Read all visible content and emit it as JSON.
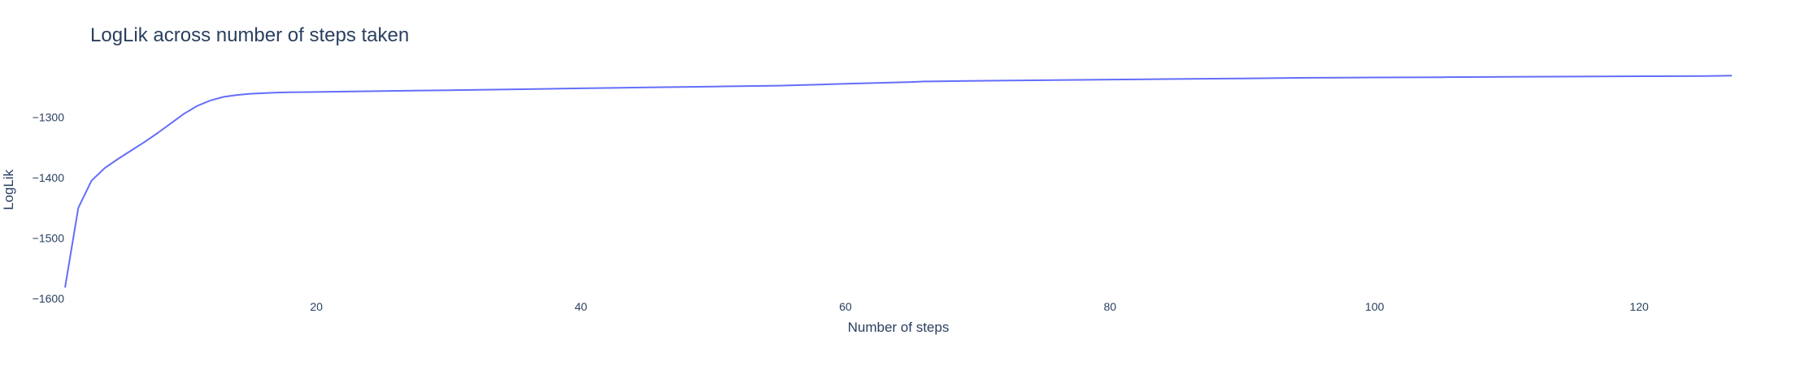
{
  "chart_data": {
    "type": "line",
    "title": "LogLik across number of steps taken",
    "xlabel": "Number of steps",
    "ylabel": "LogLik",
    "xlim": [
      1,
      127
    ],
    "ylim": [
      -1600,
      -1240
    ],
    "xticks": [
      20,
      40,
      60,
      80,
      100,
      120
    ],
    "xtick_labels": [
      "20",
      "40",
      "60",
      "80",
      "100",
      "120"
    ],
    "yticks": [
      -1600,
      -1500,
      -1400,
      -1300
    ],
    "ytick_labels": [
      "−1600",
      "−1500",
      "−1400",
      "−1300"
    ],
    "grid": false,
    "series": [
      {
        "color": "#636efa",
        "x": [
          1,
          2,
          3,
          4,
          5,
          6,
          7,
          8,
          9,
          10,
          11,
          12,
          13,
          14,
          15,
          16,
          17,
          18,
          20,
          25,
          30,
          35,
          40,
          45,
          50,
          55,
          60,
          65,
          66,
          70,
          75,
          80,
          85,
          90,
          95,
          100,
          105,
          110,
          115,
          120,
          125,
          127
        ],
        "y": [
          -1582,
          -1450,
          -1405,
          -1384,
          -1369,
          -1355,
          -1341,
          -1326,
          -1310,
          -1294,
          -1281,
          -1272,
          -1266,
          -1263,
          -1261,
          -1260,
          -1259,
          -1258.5,
          -1258,
          -1256.5,
          -1255,
          -1253.5,
          -1252,
          -1250.5,
          -1249,
          -1247.5,
          -1244.5,
          -1241.5,
          -1240.5,
          -1239.5,
          -1238.5,
          -1237.5,
          -1236.5,
          -1235.5,
          -1234.5,
          -1234,
          -1233.5,
          -1233,
          -1232.5,
          -1232,
          -1231.5,
          -1231
        ]
      }
    ]
  }
}
